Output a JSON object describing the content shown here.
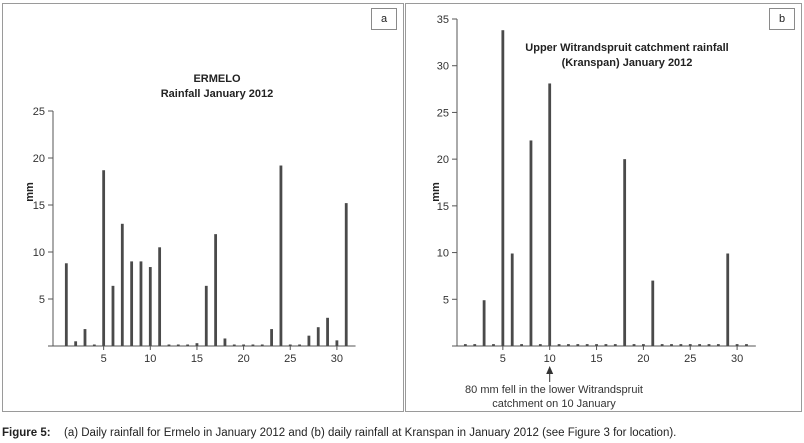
{
  "chart_data": [
    {
      "type": "bar",
      "panel_label": "a",
      "title": [
        "ERMELO",
        "Rainfall January 2012"
      ],
      "xlabel": "",
      "ylabel": "mm",
      "xlim": [
        0,
        32
      ],
      "ylim": [
        0,
        25
      ],
      "xticks": [
        5,
        10,
        15,
        20,
        25,
        30
      ],
      "yticks": [
        0,
        5,
        10,
        15,
        20,
        25
      ],
      "ytick_labels": [
        "",
        "5",
        "10",
        "15",
        "20",
        "25"
      ],
      "x": [
        1,
        2,
        3,
        4,
        5,
        6,
        7,
        8,
        9,
        10,
        11,
        12,
        13,
        14,
        15,
        16,
        17,
        18,
        19,
        20,
        21,
        22,
        23,
        24,
        25,
        26,
        27,
        28,
        29,
        30,
        31
      ],
      "values": [
        8.8,
        0.5,
        1.8,
        0.1,
        18.7,
        6.4,
        13.0,
        9.0,
        9.0,
        8.4,
        10.5,
        0.1,
        0.1,
        0.1,
        0.3,
        6.4,
        11.9,
        0.8,
        0.1,
        0.1,
        0.1,
        0.1,
        1.8,
        19.2,
        0.1,
        0.1,
        1.1,
        2.0,
        3.0,
        0.6,
        15.2
      ]
    },
    {
      "type": "bar",
      "panel_label": "b",
      "title": [
        "Upper Witrandspruit catchment rainfall",
        "(Kranspan) January 2012"
      ],
      "xlabel": "",
      "ylabel": "mm",
      "xlim": [
        0,
        32
      ],
      "ylim": [
        0,
        35
      ],
      "xticks": [
        5,
        10,
        15,
        20,
        25,
        30
      ],
      "yticks": [
        0,
        5,
        10,
        15,
        20,
        25,
        30,
        35
      ],
      "ytick_labels": [
        "",
        "5",
        "10",
        "15",
        "20",
        "25",
        "30",
        "35"
      ],
      "x": [
        1,
        2,
        3,
        4,
        5,
        6,
        7,
        8,
        9,
        10,
        11,
        12,
        13,
        14,
        15,
        16,
        17,
        18,
        19,
        20,
        21,
        22,
        23,
        24,
        25,
        26,
        27,
        28,
        29,
        30,
        31
      ],
      "values": [
        0.2,
        0.2,
        4.9,
        0.2,
        33.8,
        9.9,
        0.2,
        22.0,
        0.2,
        28.1,
        0.2,
        0.2,
        0.2,
        0.2,
        0.2,
        0.2,
        0.2,
        20.0,
        0.2,
        0.2,
        7.0,
        0.2,
        0.2,
        0.2,
        0.2,
        0.2,
        0.2,
        0.2,
        9.9,
        0.2,
        0.2
      ],
      "annotation": {
        "x": 10,
        "lines": [
          "80 mm fell in the lower Witrandspruit",
          "catchment on 10 January"
        ]
      }
    }
  ],
  "caption": {
    "label": "Figure 5:",
    "text": "(a) Daily rainfall for Ermelo in January 2012 and (b) daily rainfall at Kranspan in January 2012 (see Figure 3 for location)."
  },
  "colors": {
    "bar": "#4a4a4a",
    "axis": "#555555",
    "panel_border": "#9a9a9a"
  }
}
